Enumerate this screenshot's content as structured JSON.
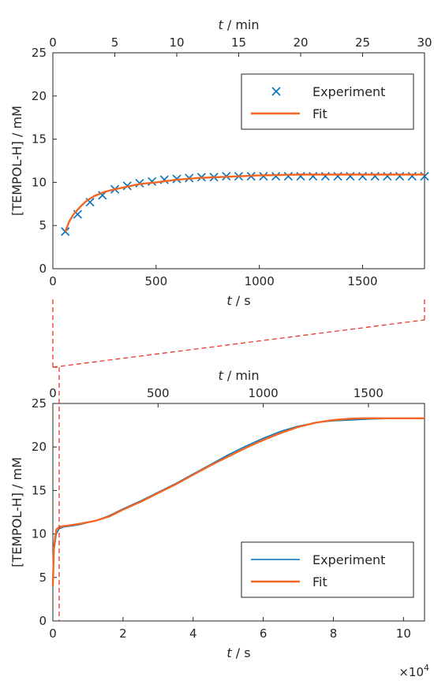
{
  "colors": {
    "experiment": "#0072BD",
    "fit": "#F26522",
    "axis": "#262626",
    "guide": "#E8382E"
  },
  "chart_data": [
    {
      "type": "scatter",
      "title": "",
      "xlabel": "t / s",
      "ylabel": "[TEMPOL-H] / mM",
      "x2label": "t / min",
      "xlim": [
        0,
        1800
      ],
      "ylim": [
        0,
        25
      ],
      "x2lim": [
        0,
        30
      ],
      "xticks": [
        "0",
        "500",
        "1000",
        "1500"
      ],
      "yticks": [
        "0",
        "5",
        "10",
        "15",
        "20",
        "25"
      ],
      "x2ticks": [
        "0",
        "5",
        "10",
        "15",
        "20",
        "25",
        "30"
      ],
      "legend_position": "top-right",
      "grid": false,
      "series": [
        {
          "name": "Experiment",
          "marker": "x",
          "x": [
            60,
            120,
            180,
            240,
            300,
            360,
            420,
            480,
            540,
            600,
            660,
            720,
            780,
            840,
            900,
            960,
            1020,
            1080,
            1140,
            1200,
            1260,
            1320,
            1380,
            1440,
            1500,
            1560,
            1620,
            1680,
            1740,
            1800
          ],
          "y": [
            4.3,
            6.3,
            7.7,
            8.5,
            9.2,
            9.6,
            9.9,
            10.1,
            10.3,
            10.4,
            10.5,
            10.6,
            10.6,
            10.7,
            10.7,
            10.7,
            10.7,
            10.7,
            10.7,
            10.7,
            10.7,
            10.7,
            10.7,
            10.7,
            10.7,
            10.7,
            10.7,
            10.7,
            10.7,
            10.7
          ]
        },
        {
          "name": "Fit",
          "marker": "line",
          "x": [
            60,
            80,
            100,
            130,
            160,
            200,
            250,
            300,
            360,
            420,
            500,
            600,
            700,
            800,
            900,
            1000,
            1200,
            1400,
            1600,
            1800
          ],
          "y": [
            4.3,
            5.5,
            6.3,
            7.1,
            7.8,
            8.4,
            8.9,
            9.2,
            9.5,
            9.8,
            10.0,
            10.3,
            10.5,
            10.6,
            10.7,
            10.8,
            10.9,
            10.9,
            10.9,
            10.9
          ]
        }
      ]
    },
    {
      "type": "line",
      "title": "",
      "xlabel": "t / s",
      "ylabel": "[TEMPOL-H] / mM",
      "x2label": "t  / min",
      "x_exponent": "×10^4",
      "xlim": [
        0,
        10.6
      ],
      "ylim": [
        0,
        25
      ],
      "x2lim": [
        0,
        1766.7
      ],
      "xticks": [
        "0",
        "2",
        "4",
        "6",
        "8",
        "10"
      ],
      "yticks": [
        "0",
        "5",
        "10",
        "15",
        "20",
        "25"
      ],
      "x2ticks": [
        "0",
        "500",
        "1000",
        "1500"
      ],
      "legend_position": "bottom-right",
      "grid": false,
      "series": [
        {
          "name": "Experiment",
          "x": [
            0,
            0.03,
            0.1,
            0.18,
            0.3,
            0.5,
            0.8,
            1.2,
            1.6,
            2.0,
            2.5,
            3.0,
            3.5,
            4.0,
            4.5,
            5.0,
            5.5,
            6.0,
            6.5,
            7.0,
            7.5,
            8.0,
            8.5,
            9.0,
            9.5,
            10.0,
            10.6
          ],
          "y": [
            4.0,
            8.0,
            10.0,
            10.6,
            10.8,
            10.9,
            11.1,
            11.5,
            12.1,
            12.9,
            13.8,
            14.8,
            15.8,
            16.9,
            18.0,
            19.1,
            20.1,
            21.0,
            21.8,
            22.4,
            22.8,
            23.0,
            23.1,
            23.2,
            23.25,
            23.3,
            23.3
          ]
        },
        {
          "name": "Fit",
          "x": [
            0,
            0.03,
            0.1,
            0.18,
            0.3,
            0.5,
            0.8,
            1.2,
            1.6,
            2.0,
            2.5,
            3.0,
            3.5,
            4.0,
            4.5,
            5.0,
            5.5,
            6.0,
            6.5,
            7.0,
            7.5,
            8.0,
            8.5,
            8.8,
            9.0,
            9.5,
            10.0,
            10.6
          ],
          "y": [
            4.0,
            8.5,
            10.5,
            10.8,
            10.9,
            11.0,
            11.2,
            11.5,
            12.0,
            12.8,
            13.7,
            14.7,
            15.7,
            16.8,
            17.9,
            18.9,
            19.9,
            20.8,
            21.6,
            22.3,
            22.8,
            23.1,
            23.25,
            23.3,
            23.3,
            23.3,
            23.3,
            23.3
          ]
        }
      ]
    }
  ]
}
